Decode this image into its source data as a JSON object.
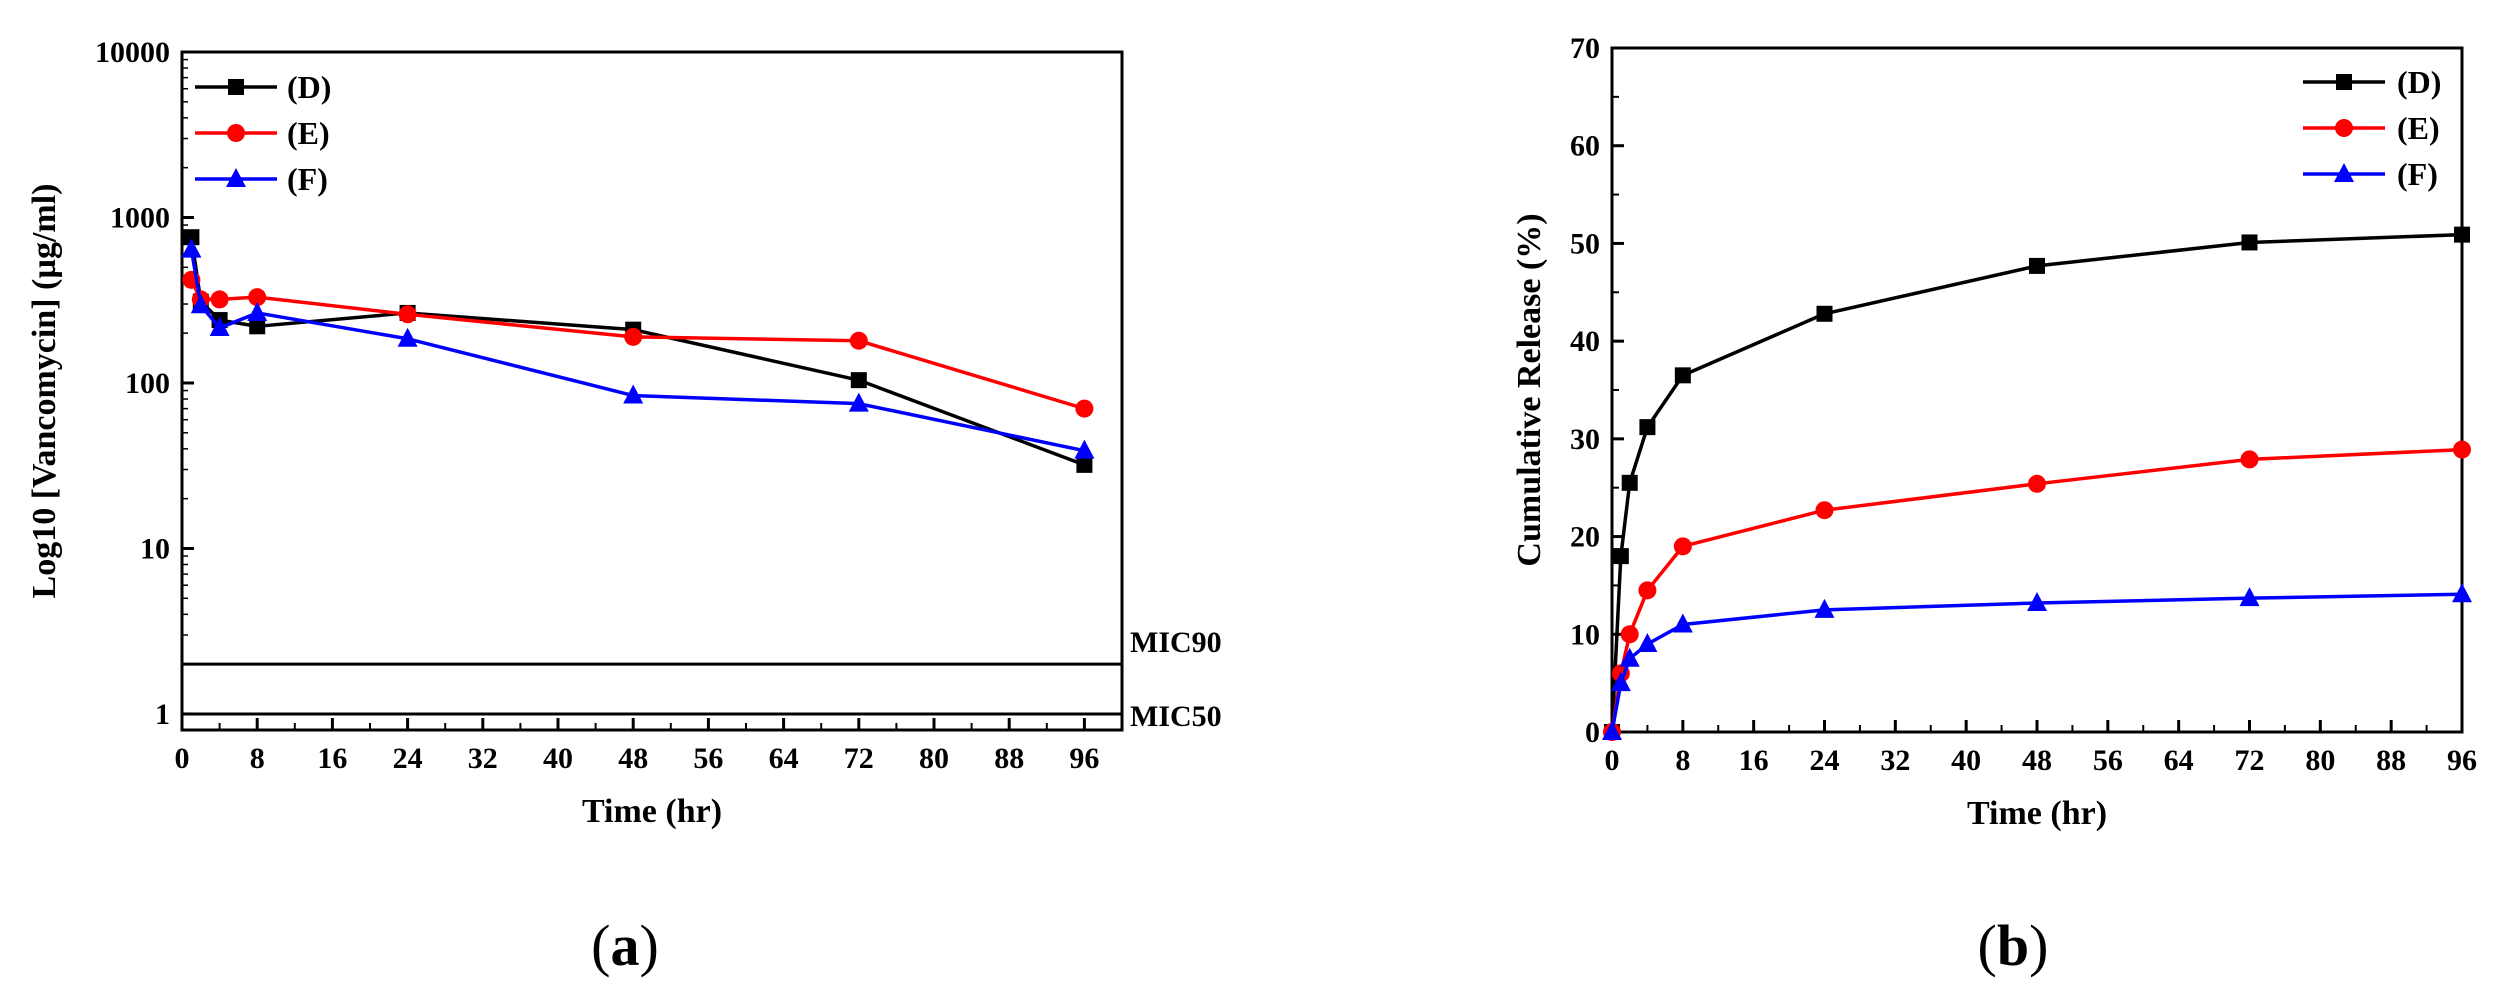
{
  "chart_data": [
    {
      "type": "line",
      "panel_label": "(a)",
      "panel_letter": "a",
      "xlabel": "Time (hr)",
      "ylabel": "Log10 [Vancomycin] (µg/ml)",
      "yscale": "log",
      "xlim": [
        0,
        100
      ],
      "ylim": [
        0.8,
        10000
      ],
      "xticks": [
        0,
        8,
        16,
        24,
        32,
        40,
        48,
        56,
        64,
        72,
        80,
        88,
        96
      ],
      "yticks": [
        1,
        10,
        100,
        1000,
        10000
      ],
      "legend_position": "top-left",
      "series": [
        {
          "name": "(D)",
          "color": "#000000",
          "marker": "square",
          "x": [
            1,
            2,
            4,
            8,
            24,
            48,
            72,
            96
          ],
          "y": [
            760,
            310,
            240,
            220,
            265,
            210,
            104,
            32
          ]
        },
        {
          "name": "(E)",
          "color": "#ff0000",
          "marker": "circle",
          "x": [
            1,
            2,
            4,
            8,
            24,
            48,
            72,
            96
          ],
          "y": [
            420,
            320,
            320,
            330,
            260,
            190,
            180,
            70
          ]
        },
        {
          "name": "(F)",
          "color": "#0000ff",
          "marker": "triangle",
          "x": [
            1,
            2,
            4,
            8,
            24,
            48,
            72,
            96
          ],
          "y": [
            640,
            295,
            215,
            265,
            185,
            84,
            75,
            39
          ]
        }
      ],
      "reference_lines": [
        {
          "label": "MIC90",
          "y": 2
        },
        {
          "label": "MIC50",
          "y": 1
        }
      ]
    },
    {
      "type": "line",
      "panel_label": "(b)",
      "panel_letter": "b",
      "xlabel": "Time (hr)",
      "ylabel": "Cumulative Release (%)",
      "xlim": [
        0,
        96
      ],
      "ylim": [
        0,
        70
      ],
      "xticks": [
        0,
        8,
        16,
        24,
        32,
        40,
        48,
        56,
        64,
        72,
        80,
        88,
        96
      ],
      "yticks": [
        0,
        10,
        20,
        30,
        40,
        50,
        60,
        70
      ],
      "legend_position": "top-right",
      "series": [
        {
          "name": "(D)",
          "color": "#000000",
          "marker": "square",
          "x": [
            0,
            1,
            2,
            4,
            8,
            24,
            48,
            72,
            96
          ],
          "y": [
            0,
            18,
            25.5,
            31.2,
            36.5,
            42.8,
            47.7,
            50.1,
            50.9
          ]
        },
        {
          "name": "(E)",
          "color": "#ff0000",
          "marker": "circle",
          "x": [
            0,
            1,
            2,
            4,
            8,
            24,
            48,
            72,
            96
          ],
          "y": [
            0,
            6,
            10,
            14.5,
            19,
            22.7,
            25.4,
            27.9,
            28.9
          ]
        },
        {
          "name": "(F)",
          "color": "#0000ff",
          "marker": "triangle",
          "x": [
            0,
            1,
            2,
            4,
            8,
            24,
            48,
            72,
            96
          ],
          "y": [
            0,
            5,
            7.5,
            9,
            11,
            12.5,
            13.2,
            13.7,
            14.1
          ]
        }
      ]
    }
  ]
}
